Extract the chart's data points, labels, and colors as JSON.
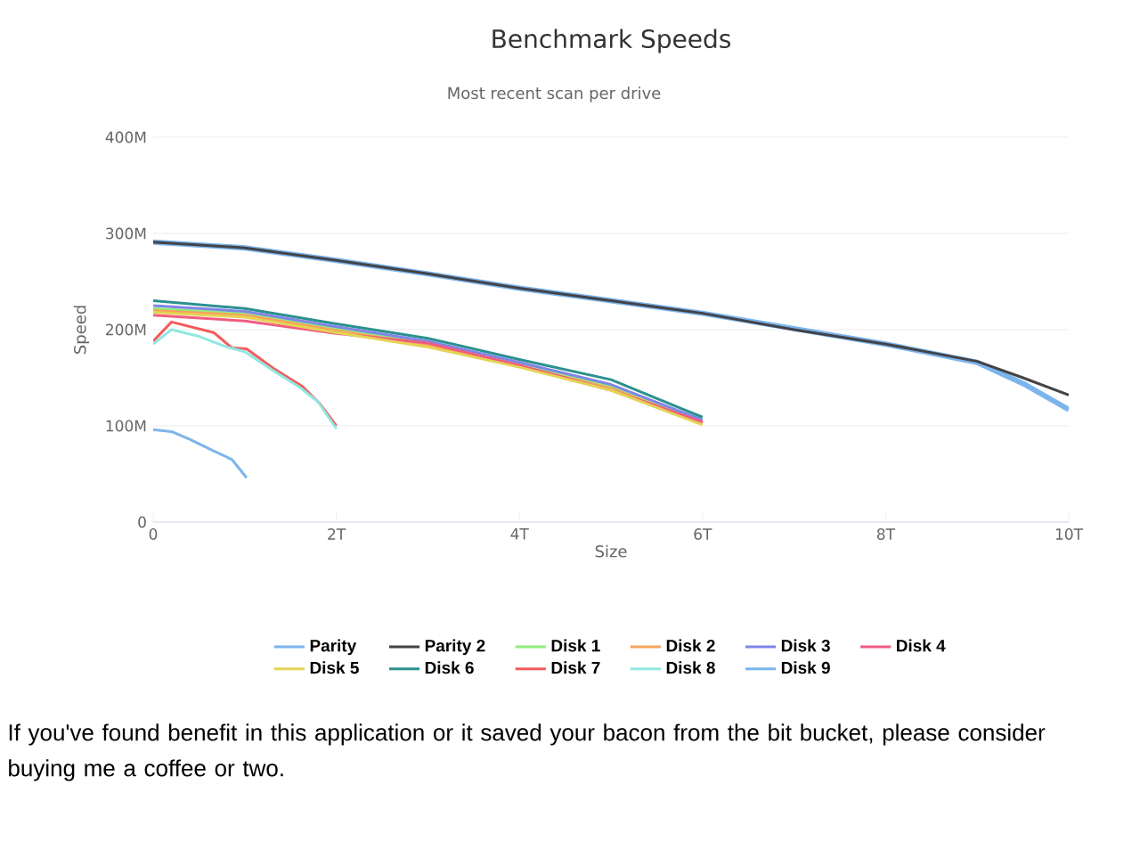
{
  "chart_data": {
    "type": "line",
    "title": "Benchmark Speeds",
    "subtitle": "Most recent scan per drive",
    "xlabel": "Size",
    "ylabel": "Speed",
    "xlim": [
      0,
      10
    ],
    "ylim": [
      0,
      400
    ],
    "xticks": [
      0,
      {
        "value": 2,
        "label": "2T"
      },
      {
        "value": 4,
        "label": "4T"
      },
      {
        "value": 6,
        "label": "6T"
      },
      {
        "value": 8,
        "label": "8T"
      },
      {
        "value": 10,
        "label": "10T"
      }
    ],
    "yticks": [
      0,
      {
        "value": 100,
        "label": "100M"
      },
      {
        "value": 200,
        "label": "200M"
      },
      {
        "value": 300,
        "label": "300M"
      },
      {
        "value": 400,
        "label": "400M"
      }
    ],
    "grid": "y",
    "legend": "bottom",
    "marker": "none",
    "line_style": "solid",
    "series": [
      {
        "name": "Parity",
        "color": "#7cb5ec",
        "x": [
          0,
          1,
          2,
          3,
          4,
          5,
          6,
          7,
          8,
          9,
          9.5,
          10
        ],
        "values": [
          291,
          285,
          272,
          258,
          243,
          230,
          217,
          201,
          185,
          166,
          144,
          117
        ]
      },
      {
        "name": "Parity 2",
        "color": "#434348",
        "x": [
          0,
          1,
          2,
          3,
          4,
          5,
          6,
          7,
          8,
          9,
          9.5,
          10
        ],
        "values": [
          291,
          285,
          272,
          258,
          243,
          230,
          217,
          200,
          185,
          167,
          150,
          132
        ]
      },
      {
        "name": "Disk 1",
        "color": "#90ed7d",
        "x": [
          0,
          1,
          2,
          3,
          4,
          5,
          6
        ],
        "values": [
          222,
          217,
          201,
          186,
          164,
          141,
          104
        ]
      },
      {
        "name": "Disk 2",
        "color": "#f7a35c",
        "x": [
          0,
          1,
          2,
          3,
          4,
          5,
          6
        ],
        "values": [
          220,
          215,
          199,
          184,
          162,
          139,
          103
        ]
      },
      {
        "name": "Disk 3",
        "color": "#8085e9",
        "x": [
          0,
          1,
          2,
          3,
          4,
          5,
          6
        ],
        "values": [
          225,
          219,
          203,
          188,
          166,
          143,
          106
        ]
      },
      {
        "name": "Disk 4",
        "color": "#f15c80",
        "x": [
          0,
          1,
          2,
          3,
          4,
          5,
          6
        ],
        "values": [
          215,
          209,
          196,
          186,
          163,
          137,
          104
        ]
      },
      {
        "name": "Disk 5",
        "color": "#e4d354",
        "x": [
          0,
          1,
          2,
          3,
          4,
          5,
          6
        ],
        "values": [
          218,
          213,
          197,
          182,
          161,
          137,
          101
        ]
      },
      {
        "name": "Disk 6",
        "color": "#2b908f",
        "x": [
          0,
          1,
          2,
          3,
          4,
          5,
          6
        ],
        "values": [
          230,
          222,
          206,
          191,
          169,
          148,
          109
        ]
      },
      {
        "name": "Disk 7",
        "color": "#f45b5b",
        "x": [
          0,
          0.2,
          0.66,
          0.86,
          1.02,
          1.31,
          1.63,
          1.82,
          2
        ],
        "values": [
          188,
          208,
          197,
          181,
          180,
          160,
          141,
          123,
          100
        ]
      },
      {
        "name": "Disk 8",
        "color": "#91e8e1",
        "x": [
          0,
          0.2,
          0.5,
          0.8,
          1.0,
          1.3,
          1.6,
          1.8,
          2
        ],
        "values": [
          185,
          200,
          193,
          182,
          177,
          158,
          140,
          125,
          97
        ]
      },
      {
        "name": "Disk 9",
        "color": "#7cb5ec",
        "x": [
          0,
          0.2,
          0.4,
          0.66,
          0.86,
          1.02
        ],
        "values": [
          96,
          94,
          86,
          74,
          65,
          46
        ]
      }
    ],
    "annotations": [
      "If you've found benefit in this application or it saved your bacon from the bit bucket, please consider buying me a coffee or two."
    ]
  }
}
